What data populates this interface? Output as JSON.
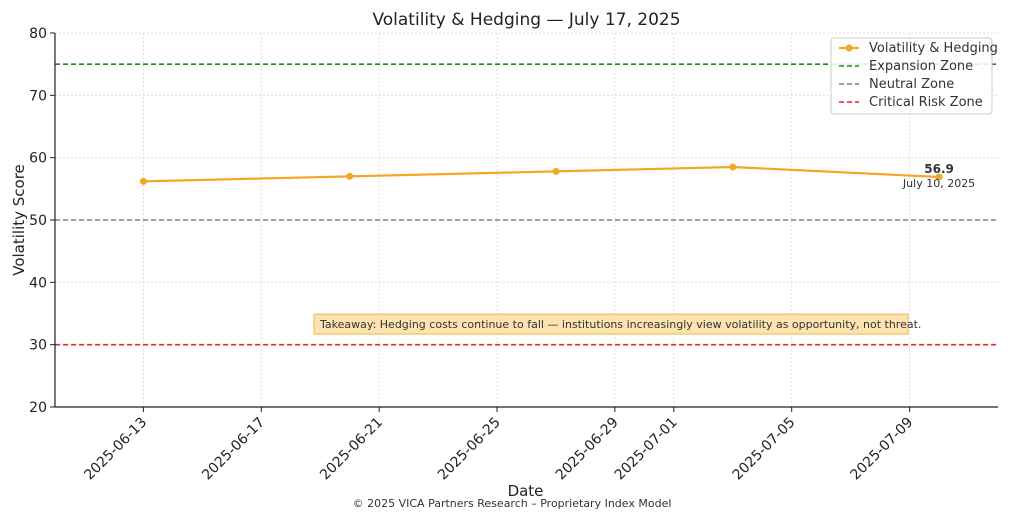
{
  "chart_data": {
    "type": "line",
    "title": "Volatility & Hedging — July 17, 2025",
    "xlabel": "Date",
    "ylabel": "Volatility Score",
    "ylim": [
      20,
      80
    ],
    "xlim": [
      "2025-06-10",
      "2025-07-12"
    ],
    "y_ticks": [
      20,
      30,
      40,
      50,
      60,
      70,
      80
    ],
    "x_ticks": [
      "2025-06-13",
      "2025-06-17",
      "2025-06-21",
      "2025-06-25",
      "2025-06-29",
      "2025-07-01",
      "2025-07-05",
      "2025-07-09"
    ],
    "grid": true,
    "legend_position": "top-right",
    "series": [
      {
        "name": "Volatility & Hedging",
        "color": "#f5a623",
        "x": [
          "2025-06-13",
          "2025-06-20",
          "2025-06-27",
          "2025-07-03",
          "2025-07-10"
        ],
        "y": [
          56.2,
          57.0,
          57.8,
          58.5,
          56.9
        ]
      }
    ],
    "reference_lines": [
      {
        "name": "Expansion Zone",
        "y": 75,
        "color": "#1a8a1a"
      },
      {
        "name": "Neutral Zone",
        "y": 50,
        "color": "#808080"
      },
      {
        "name": "Critical Risk Zone",
        "y": 30,
        "color": "#e8262b"
      }
    ],
    "annotations": {
      "last_value": "56.9",
      "last_date": "July 10, 2025",
      "takeaway": "Takeaway: Hedging costs continue to fall — institutions increasingly view volatility as opportunity, not threat."
    },
    "footer": "© 2025 VICA Partners Research – Proprietary Index Model"
  }
}
